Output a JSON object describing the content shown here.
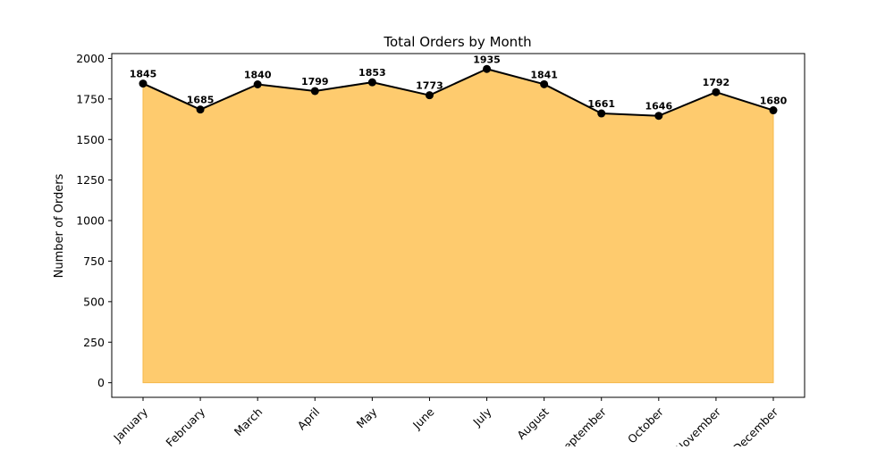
{
  "chart_data": {
    "type": "area",
    "title": "Total Orders by Month",
    "xlabel": "",
    "ylabel": "Number of Orders",
    "categories": [
      "January",
      "February",
      "March",
      "April",
      "May",
      "June",
      "July",
      "August",
      "September",
      "October",
      "November",
      "December"
    ],
    "series": [
      {
        "values": [
          1845,
          1685,
          1840,
          1799,
          1853,
          1773,
          1935,
          1841,
          1661,
          1646,
          1792,
          1680
        ],
        "fill_color": "#fec866",
        "line_color": "#000000",
        "marker_color": "#000000"
      }
    ],
    "ylim": [
      -90,
      2030
    ],
    "yticks": [
      0,
      250,
      500,
      750,
      1000,
      1250,
      1500,
      1750,
      2000
    ],
    "ytick_labels": [
      "0",
      "250",
      "500",
      "750",
      "1000",
      "1250",
      "1500",
      "1750",
      "2000"
    ],
    "grid": false,
    "legend": "none",
    "data_labels": true
  }
}
